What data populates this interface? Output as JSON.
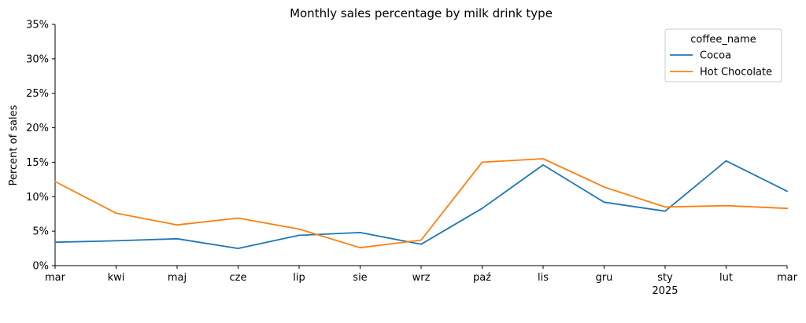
{
  "chart_data": {
    "type": "line",
    "title": "Monthly sales percentage by milk drink type",
    "xlabel": "",
    "ylabel": "Percent of sales",
    "categories": [
      "mar",
      "kwi",
      "maj",
      "cze",
      "lip",
      "sie",
      "wrz",
      "paź",
      "lis",
      "gru",
      "sty",
      "lut",
      "mar"
    ],
    "year_label": "2025",
    "ylim": [
      0,
      35
    ],
    "yticks": [
      0,
      5,
      10,
      15,
      20,
      25,
      30,
      35
    ],
    "ytick_labels": [
      "0%",
      "5%",
      "10%",
      "15%",
      "20%",
      "25%",
      "30%",
      "35%"
    ],
    "grid": false,
    "legend": {
      "title": "coffee_name",
      "position": "top-right"
    },
    "series": [
      {
        "name": "Cocoa",
        "color": "#1f77b4",
        "values": [
          3.4,
          3.6,
          3.9,
          2.5,
          4.4,
          4.8,
          3.1,
          8.3,
          14.6,
          9.2,
          7.9,
          15.2,
          10.8
        ]
      },
      {
        "name": "Hot Chocolate",
        "color": "#ff7f0e",
        "values": [
          12.2,
          7.6,
          5.9,
          6.9,
          5.3,
          2.6,
          3.7,
          15.0,
          15.5,
          11.4,
          8.5,
          8.7,
          8.3
        ]
      }
    ]
  }
}
